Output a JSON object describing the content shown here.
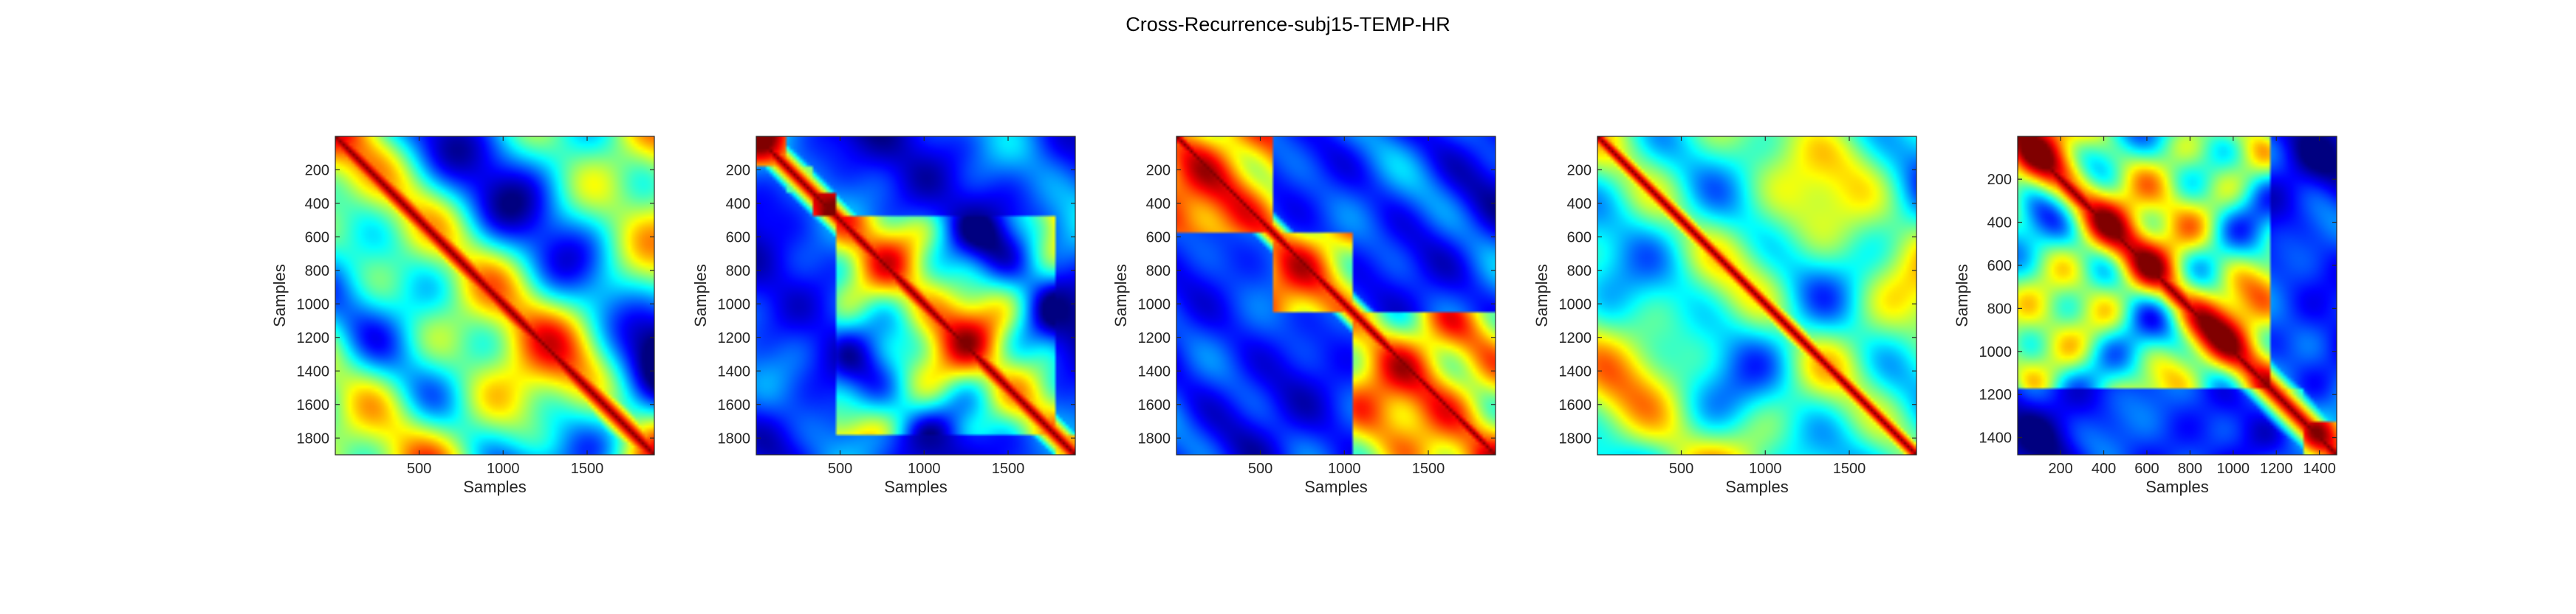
{
  "figure": {
    "title": "Cross-Recurrence-subj15-TEMP-HR"
  },
  "chart_data": [
    {
      "type": "heatmap",
      "title": "",
      "xlabel": "Samples",
      "ylabel": "Samples",
      "xlim": [
        1,
        1900
      ],
      "ylim": [
        1,
        1900
      ],
      "y_reversed": true,
      "colormap": "jet",
      "x_ticks": [
        500,
        1000,
        1500
      ],
      "y_ticks": [
        200,
        400,
        600,
        800,
        1000,
        1200,
        1400,
        1600,
        1800
      ],
      "pattern": {
        "seed": 11,
        "diag_width": 0.018,
        "segments": []
      }
    },
    {
      "type": "heatmap",
      "title": "",
      "xlabel": "Samples",
      "ylabel": "Samples",
      "xlim": [
        1,
        1900
      ],
      "ylim": [
        1,
        1900
      ],
      "y_reversed": true,
      "colormap": "jet",
      "x_ticks": [
        500,
        1000,
        1500
      ],
      "y_ticks": [
        200,
        400,
        600,
        800,
        1000,
        1200,
        1400,
        1600,
        1800
      ],
      "pattern": {
        "seed": 23,
        "diag_width": 0.016,
        "segments": [
          [
            0,
            0.09
          ],
          [
            0.09,
            0.17
          ],
          [
            0.17,
            0.25
          ],
          [
            0.25,
            0.93
          ],
          [
            0.93,
            1
          ]
        ]
      }
    },
    {
      "type": "heatmap",
      "title": "",
      "xlabel": "Samples",
      "ylabel": "Samples",
      "xlim": [
        1,
        1900
      ],
      "ylim": [
        1,
        1900
      ],
      "y_reversed": true,
      "colormap": "jet",
      "x_ticks": [
        500,
        1000,
        1500
      ],
      "y_ticks": [
        200,
        400,
        600,
        800,
        1000,
        1200,
        1400,
        1600,
        1800
      ],
      "pattern": {
        "seed": 37,
        "diag_width": 0.014,
        "segments": [
          [
            0,
            0.3
          ],
          [
            0.3,
            0.55
          ],
          [
            0.55,
            1
          ]
        ]
      }
    },
    {
      "type": "heatmap",
      "title": "",
      "xlabel": "Samples",
      "ylabel": "Samples",
      "xlim": [
        1,
        1900
      ],
      "ylim": [
        1,
        1900
      ],
      "y_reversed": true,
      "colormap": "jet",
      "x_ticks": [
        500,
        1000,
        1500
      ],
      "y_ticks": [
        200,
        400,
        600,
        800,
        1000,
        1200,
        1400,
        1600,
        1800
      ],
      "pattern": {
        "seed": 53,
        "diag_width": 0.013,
        "segments": []
      }
    },
    {
      "type": "heatmap",
      "title": "",
      "xlabel": "Samples",
      "ylabel": "Samples",
      "xlim": [
        1,
        1480
      ],
      "ylim": [
        1,
        1480
      ],
      "y_reversed": true,
      "colormap": "jet",
      "x_ticks": [
        200,
        400,
        600,
        800,
        1000,
        1200,
        1400
      ],
      "y_ticks": [
        200,
        400,
        600,
        800,
        1000,
        1200,
        1400
      ],
      "pattern": {
        "seed": 71,
        "diag_width": 0.02,
        "segments": [
          [
            0,
            0.79
          ],
          [
            0.79,
            0.89
          ],
          [
            0.89,
            1
          ]
        ]
      }
    }
  ]
}
